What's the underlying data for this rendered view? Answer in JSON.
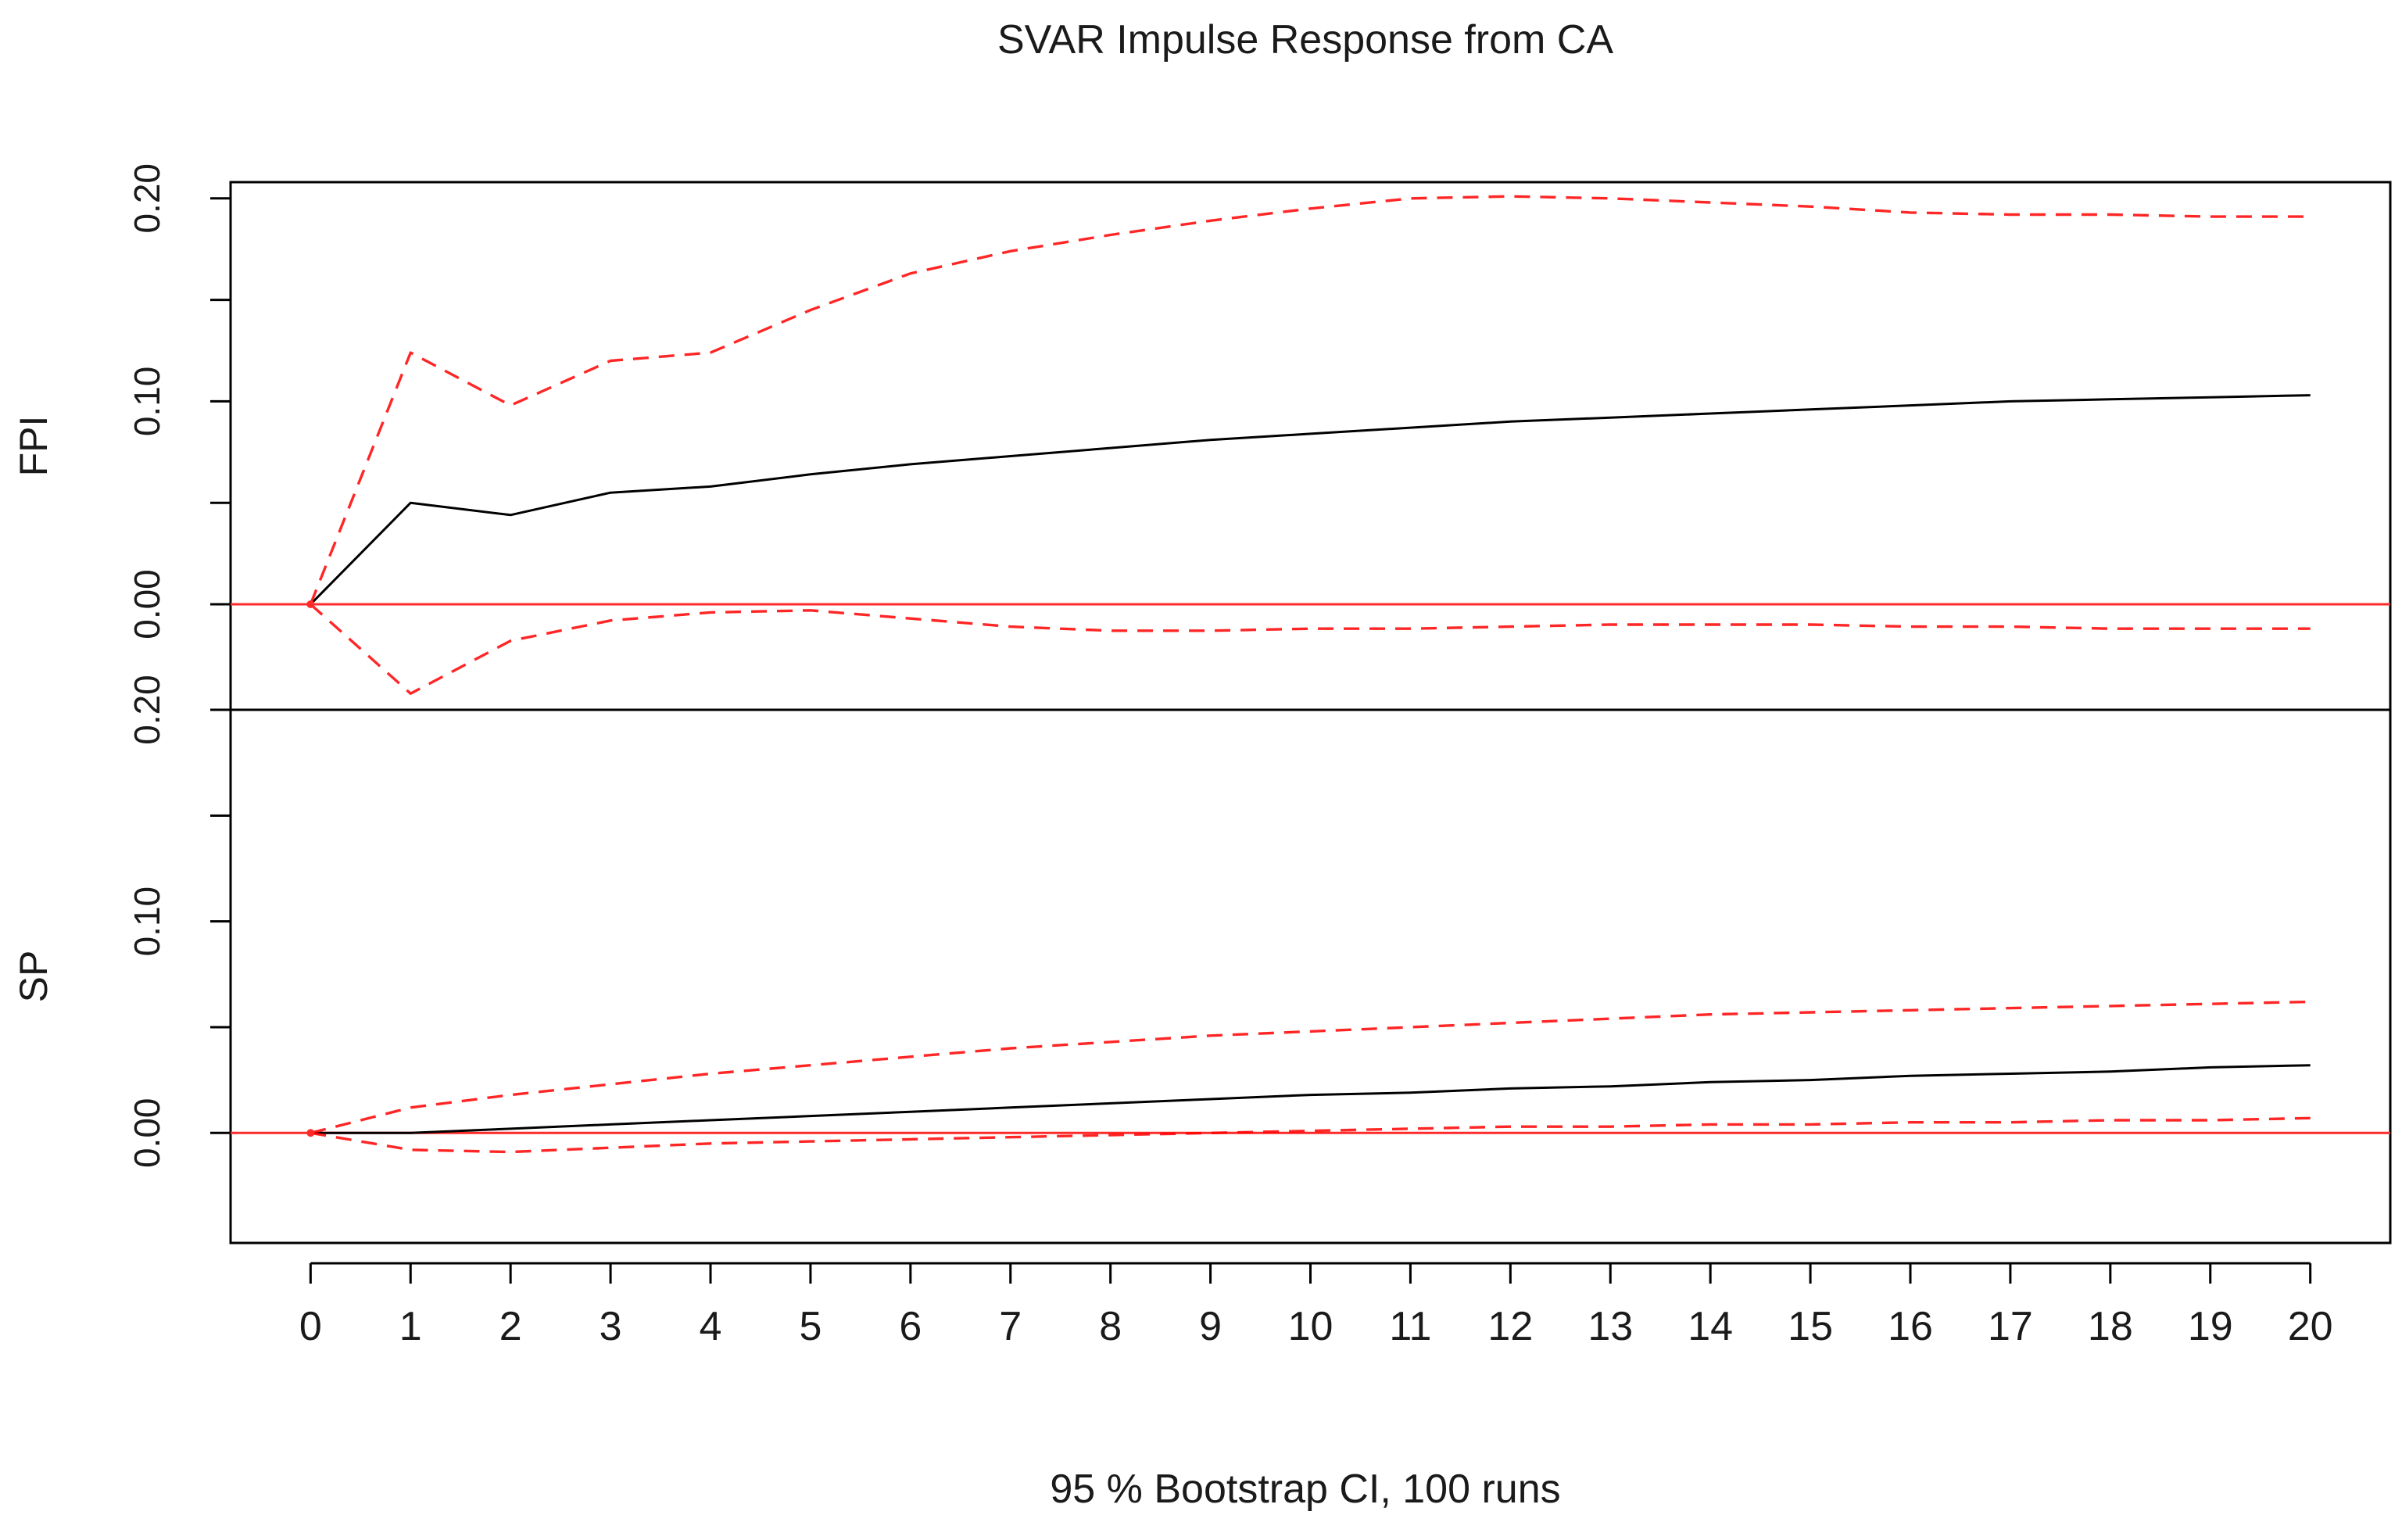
{
  "chart_data": {
    "type": "line",
    "title": "SVAR Impulse Response from CA",
    "xlabel": "95 % Bootstrap CI,  100 runs",
    "x": [
      0,
      1,
      2,
      3,
      4,
      5,
      6,
      7,
      8,
      9,
      10,
      11,
      12,
      13,
      14,
      15,
      16,
      17,
      18,
      19,
      20
    ],
    "x_tick_labels": [
      "0",
      "1",
      "2",
      "3",
      "4",
      "5",
      "6",
      "7",
      "8",
      "9",
      "10",
      "11",
      "12",
      "13",
      "14",
      "15",
      "16",
      "17",
      "18",
      "19",
      "20"
    ],
    "xlim": [
      -0.8,
      20.8
    ],
    "panels": [
      {
        "ylabel": "FPI",
        "ylim": [
          -0.052,
          0.208
        ],
        "yticks": [
          0.0,
          0.05,
          0.1,
          0.15,
          0.2
        ],
        "ytick_labels": [
          "0.00",
          "",
          "0.10",
          "",
          "0.20"
        ],
        "zero_line": 0,
        "series": [
          {
            "name": "response",
            "style": "solid",
            "color": "#000000",
            "values": [
              0.0,
              0.05,
              0.044,
              0.055,
              0.058,
              0.064,
              0.069,
              0.073,
              0.077,
              0.081,
              0.084,
              0.087,
              0.09,
              0.092,
              0.094,
              0.096,
              0.098,
              0.1,
              0.101,
              0.102,
              0.103
            ]
          },
          {
            "name": "upper CI",
            "style": "dashed",
            "color": "#ff0000",
            "values": [
              0.0,
              0.124,
              0.098,
              0.12,
              0.124,
              0.145,
              0.163,
              0.174,
              0.182,
              0.189,
              0.195,
              0.2,
              0.201,
              0.2,
              0.198,
              0.196,
              0.193,
              0.192,
              0.192,
              0.191,
              0.191
            ]
          },
          {
            "name": "lower CI",
            "style": "dashed",
            "color": "#ff0000",
            "values": [
              0.0,
              -0.044,
              -0.018,
              -0.008,
              -0.004,
              -0.003,
              -0.007,
              -0.011,
              -0.013,
              -0.013,
              -0.012,
              -0.012,
              -0.011,
              -0.01,
              -0.01,
              -0.01,
              -0.011,
              -0.011,
              -0.012,
              -0.012,
              -0.012
            ]
          }
        ]
      },
      {
        "ylabel": "SP",
        "ylim": [
          -0.052,
          0.2
        ],
        "yticks": [
          0.0,
          0.05,
          0.1,
          0.15,
          0.2
        ],
        "ytick_labels": [
          "0.00",
          "",
          "0.10",
          "",
          "0.20"
        ],
        "zero_line": 0,
        "series": [
          {
            "name": "response",
            "style": "solid",
            "color": "#000000",
            "values": [
              0.0,
              0.0,
              0.002,
              0.004,
              0.006,
              0.008,
              0.01,
              0.012,
              0.014,
              0.016,
              0.018,
              0.019,
              0.021,
              0.022,
              0.024,
              0.025,
              0.027,
              0.028,
              0.029,
              0.031,
              0.032
            ]
          },
          {
            "name": "upper CI",
            "style": "dashed",
            "color": "#ff0000",
            "values": [
              0.0,
              0.012,
              0.018,
              0.023,
              0.028,
              0.032,
              0.036,
              0.04,
              0.043,
              0.046,
              0.048,
              0.05,
              0.052,
              0.054,
              0.056,
              0.057,
              0.058,
              0.059,
              0.06,
              0.061,
              0.062
            ]
          },
          {
            "name": "lower CI",
            "style": "dashed",
            "color": "#ff0000",
            "values": [
              0.0,
              -0.008,
              -0.009,
              -0.007,
              -0.005,
              -0.004,
              -0.003,
              -0.002,
              -0.001,
              0.0,
              0.001,
              0.002,
              0.003,
              0.003,
              0.004,
              0.004,
              0.005,
              0.005,
              0.006,
              0.006,
              0.007
            ]
          }
        ]
      }
    ]
  }
}
